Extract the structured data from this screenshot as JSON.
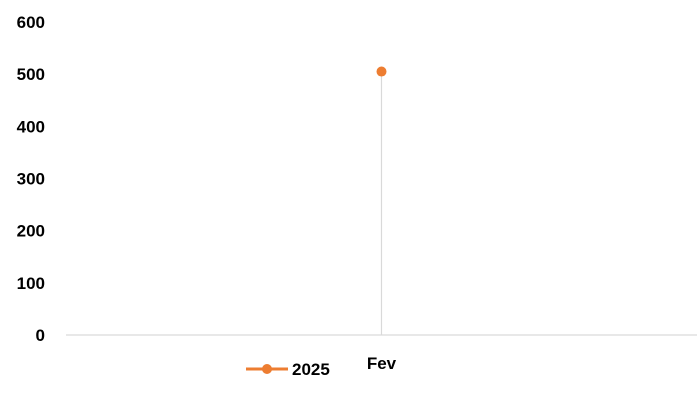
{
  "chart_data": {
    "type": "line",
    "categories": [
      "Fev"
    ],
    "series": [
      {
        "name": "2025",
        "values": [
          505
        ],
        "color": "#ED7D31"
      }
    ],
    "ylim": [
      0,
      600
    ],
    "yticks": [
      "0",
      "100",
      "200",
      "300",
      "400",
      "500",
      "600"
    ],
    "grid": false,
    "drop_lines": true,
    "legend_position": "bottom-left"
  }
}
